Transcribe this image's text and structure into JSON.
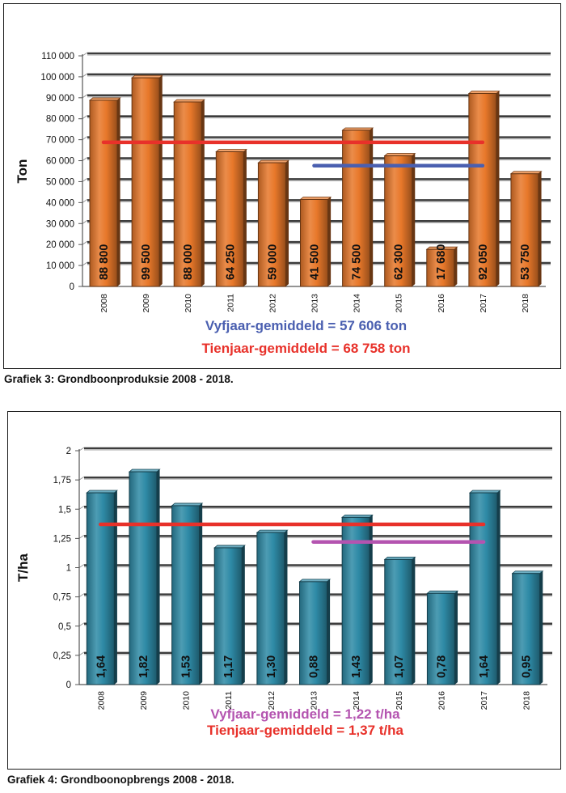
{
  "chart_data": [
    {
      "type": "bar",
      "title": "",
      "caption": "Grafiek 3: Grondboonproduksie 2008 - 2018.",
      "ylabel": "Ton",
      "xlabel": "",
      "ylim": [
        0,
        110000
      ],
      "y_ticks": [
        0,
        10000,
        20000,
        30000,
        40000,
        50000,
        60000,
        70000,
        80000,
        90000,
        100000,
        110000
      ],
      "y_tick_labels": [
        "0",
        "10 000",
        "20 000",
        "30 000",
        "40 000",
        "50 000",
        "60 000",
        "70 000",
        "80 000",
        "90 000",
        "100 000",
        "110 000"
      ],
      "grid": true,
      "categories": [
        "2008",
        "2009",
        "2010",
        "2011",
        "2012",
        "2013",
        "2014",
        "2015",
        "2016",
        "2017",
        "2018"
      ],
      "values": [
        88800,
        99500,
        88000,
        64250,
        59000,
        41500,
        74500,
        62300,
        17680,
        92050,
        53750
      ],
      "value_labels": [
        "88 800",
        "99 500",
        "88 000",
        "64 250",
        "59 000",
        "41 500",
        "74 500",
        "62 300",
        "17 680",
        "92 050",
        "53 750"
      ],
      "bar_color": "#e8782a",
      "reference_lines": [
        {
          "label": "Tienjaar-gemiddeld = 68 758 ton",
          "value": 68758,
          "from": "2008",
          "to": "2017",
          "color": "#e8312a"
        },
        {
          "label": "Vyfjaar-gemiddeld = 57 606 ton",
          "value": 57606,
          "from": "2013",
          "to": "2017",
          "color": "#4a5fb0"
        }
      ],
      "legend_order": [
        1,
        0
      ]
    },
    {
      "type": "bar",
      "title": "",
      "caption": "Grafiek 4: Grondboonopbrengs 2008 - 2018.",
      "ylabel": "T/ha",
      "xlabel": "",
      "ylim": [
        0,
        2
      ],
      "y_ticks": [
        0,
        0.25,
        0.5,
        0.75,
        1,
        1.25,
        1.5,
        1.75,
        2
      ],
      "y_tick_labels": [
        "0",
        "0,25",
        "0,5",
        "0,75",
        "1",
        "1,25",
        "1,5",
        "1,75",
        "2"
      ],
      "grid": true,
      "categories": [
        "2008",
        "2009",
        "2010",
        "2011",
        "2012",
        "2013",
        "2014",
        "2015",
        "2016",
        "2017",
        "2018"
      ],
      "values": [
        1.64,
        1.82,
        1.53,
        1.17,
        1.3,
        0.88,
        1.43,
        1.07,
        0.78,
        1.64,
        0.95
      ],
      "value_labels": [
        "1,64",
        "1,82",
        "1,53",
        "1,17",
        "1,30",
        "0,88",
        "1,43",
        "1,07",
        "0,78",
        "1,64",
        "0,95"
      ],
      "bar_color": "#2e8aa6",
      "reference_lines": [
        {
          "label": "Tienjaar-gemiddeld = 1,37 t/ha",
          "value": 1.37,
          "from": "2008",
          "to": "2017",
          "color": "#e8312a"
        },
        {
          "label": "Vyfjaar-gemiddeld = 1,22 t/ha",
          "value": 1.22,
          "from": "2013",
          "to": "2017",
          "color": "#b454b0"
        }
      ],
      "legend_order": [
        1,
        0
      ]
    }
  ]
}
